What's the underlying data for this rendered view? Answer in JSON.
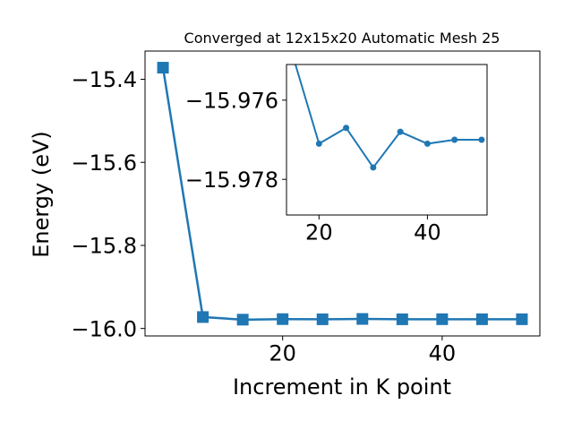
{
  "chart_data": [
    {
      "type": "line",
      "title": "Converged at 12x15x20 Automatic Mesh 25",
      "xlabel": "Increment in K point",
      "ylabel": "Energy (eV)",
      "xlim": [
        2.75,
        52.25
      ],
      "ylim": [
        -16.018,
        -15.332
      ],
      "xticks": [
        20,
        40
      ],
      "yticks": [
        -15.4,
        -15.6,
        -15.8,
        -16.0
      ],
      "xtick_labels": [
        "20",
        "40"
      ],
      "ytick_labels": [
        "−15.4",
        "−15.6",
        "−15.8",
        "−16.0"
      ],
      "grid": false,
      "marker": "square",
      "color": "#1f77b4",
      "series": [
        {
          "x": [
            5,
            10,
            15,
            20,
            25,
            30,
            35,
            40,
            45,
            50
          ],
          "y": [
            -15.372,
            -15.9725,
            -15.9788,
            -15.9775,
            -15.9779,
            -15.9771,
            -15.9779,
            -15.9777,
            -15.9778,
            -15.9778
          ]
        }
      ]
    },
    {
      "type": "line",
      "title": "",
      "xlim": [
        14,
        51
      ],
      "ylim": [
        -15.9789,
        -15.9751
      ],
      "xticks": [
        20,
        40
      ],
      "yticks": [
        -15.978,
        -15.976
      ],
      "xtick_labels": [
        "20",
        "40"
      ],
      "ytick_labels": [
        "−15.978",
        "−15.976"
      ],
      "grid": false,
      "marker": "circle",
      "color": "#1f77b4",
      "series": [
        {
          "x": [
            10,
            20,
            25,
            30,
            35,
            40,
            45,
            50
          ],
          "y": [
            -15.9725,
            -15.9771,
            -15.9767,
            -15.9777,
            -15.9768,
            -15.9771,
            -15.977,
            -15.977
          ]
        }
      ]
    }
  ]
}
